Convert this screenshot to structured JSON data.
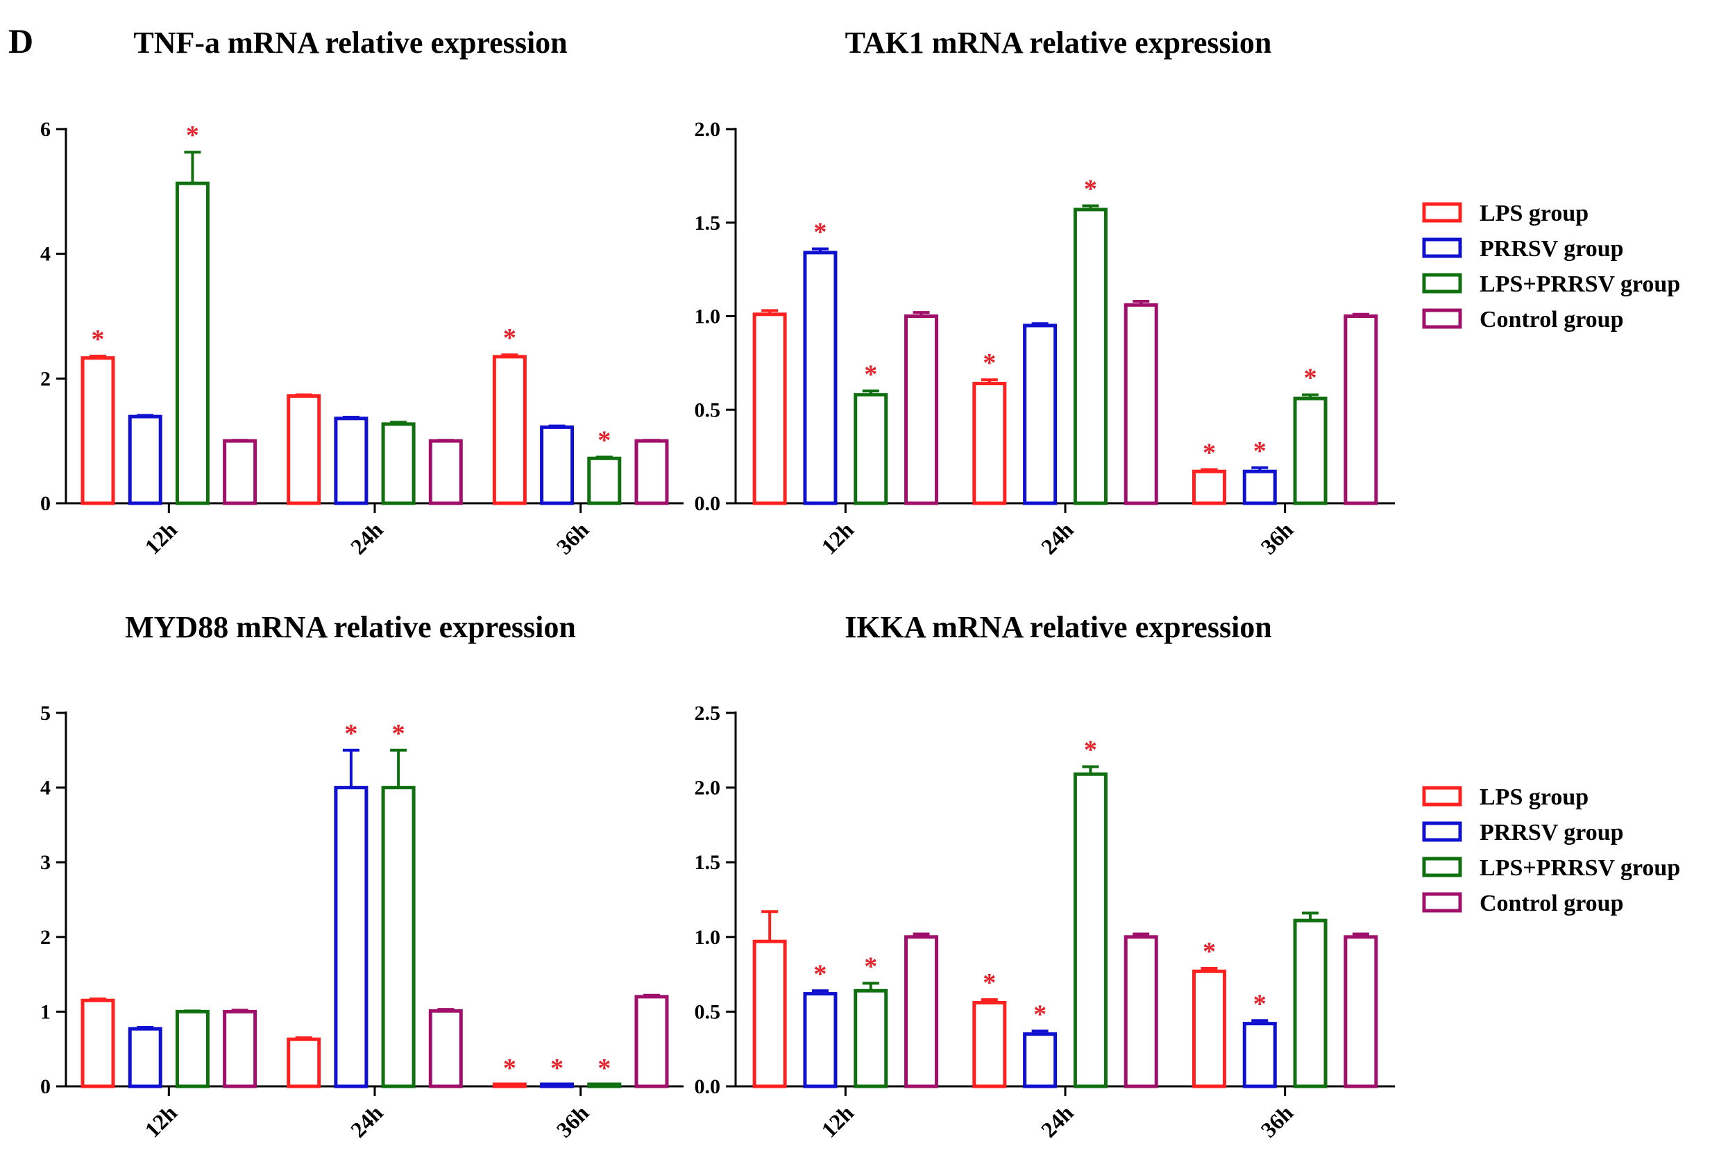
{
  "panel_letter": "D",
  "legend": [
    {
      "label": "LPS group",
      "color": "#ff2020"
    },
    {
      "label": "PRRSV group",
      "color": "#1010d0"
    },
    {
      "label": "LPS+PRRSV group",
      "color": "#107010"
    },
    {
      "label": "Control group",
      "color": "#a0106a"
    }
  ],
  "chart_data": [
    {
      "type": "bar",
      "title": "TNF-a mRNA relative expression",
      "categories": [
        "12h",
        "24h",
        "36h"
      ],
      "ylim": [
        0,
        6
      ],
      "yticks": [
        0,
        2,
        4,
        6
      ],
      "tick_decimals": 0,
      "series": [
        {
          "name": "LPS group",
          "values": [
            2.33,
            1.72,
            2.35
          ],
          "errors": [
            0.03,
            0.02,
            0.03
          ],
          "sig": [
            true,
            false,
            true
          ]
        },
        {
          "name": "PRRSV group",
          "values": [
            1.39,
            1.36,
            1.22
          ],
          "errors": [
            0.02,
            0.02,
            0.02
          ],
          "sig": [
            false,
            false,
            false
          ]
        },
        {
          "name": "LPS+PRRSV group",
          "values": [
            5.13,
            1.27,
            0.72
          ],
          "errors": [
            0.5,
            0.03,
            0.02
          ],
          "sig": [
            true,
            false,
            true
          ]
        },
        {
          "name": "Control group",
          "values": [
            1.0,
            1.0,
            1.0
          ],
          "errors": [
            0.01,
            0.01,
            0.01
          ],
          "sig": [
            false,
            false,
            false
          ]
        }
      ]
    },
    {
      "type": "bar",
      "title": "TAK1 mRNA relative expression",
      "categories": [
        "12h",
        "24h",
        "36h"
      ],
      "ylim": [
        0,
        2.0
      ],
      "yticks": [
        0,
        0.5,
        1.0,
        1.5,
        2.0
      ],
      "tick_decimals": 1,
      "series": [
        {
          "name": "LPS group",
          "values": [
            1.01,
            0.64,
            0.17
          ],
          "errors": [
            0.02,
            0.02,
            0.01
          ],
          "sig": [
            false,
            true,
            true
          ]
        },
        {
          "name": "PRRSV group",
          "values": [
            1.34,
            0.95,
            0.17
          ],
          "errors": [
            0.02,
            0.01,
            0.02
          ],
          "sig": [
            true,
            false,
            true
          ]
        },
        {
          "name": "LPS+PRRSV group",
          "values": [
            0.58,
            1.57,
            0.56
          ],
          "errors": [
            0.02,
            0.02,
            0.02
          ],
          "sig": [
            true,
            true,
            true
          ]
        },
        {
          "name": "Control group",
          "values": [
            1.0,
            1.06,
            1.0
          ],
          "errors": [
            0.02,
            0.02,
            0.01
          ],
          "sig": [
            false,
            false,
            false
          ]
        }
      ]
    },
    {
      "type": "bar",
      "title": "MYD88 mRNA relative expression",
      "categories": [
        "12h",
        "24h",
        "36h"
      ],
      "ylim": [
        0,
        5
      ],
      "yticks": [
        0,
        1,
        2,
        3,
        4,
        5
      ],
      "tick_decimals": 0,
      "series": [
        {
          "name": "LPS group",
          "values": [
            1.15,
            0.63,
            0.02
          ],
          "errors": [
            0.02,
            0.02,
            0.0
          ],
          "sig": [
            false,
            false,
            true
          ]
        },
        {
          "name": "PRRSV group",
          "values": [
            0.77,
            4.0,
            0.02
          ],
          "errors": [
            0.02,
            0.5,
            0.0
          ],
          "sig": [
            false,
            true,
            true
          ]
        },
        {
          "name": "LPS+PRRSV group",
          "values": [
            1.0,
            4.0,
            0.02
          ],
          "errors": [
            0.01,
            0.5,
            0.0
          ],
          "sig": [
            false,
            true,
            true
          ]
        },
        {
          "name": "Control group",
          "values": [
            1.0,
            1.01,
            1.2
          ],
          "errors": [
            0.02,
            0.02,
            0.02
          ],
          "sig": [
            false,
            false,
            false
          ]
        }
      ]
    },
    {
      "type": "bar",
      "title": "IKKA mRNA relative expression",
      "categories": [
        "12h",
        "24h",
        "36h"
      ],
      "ylim": [
        0,
        2.5
      ],
      "yticks": [
        0,
        0.5,
        1.0,
        1.5,
        2.0,
        2.5
      ],
      "tick_decimals": 1,
      "series": [
        {
          "name": "LPS group",
          "values": [
            0.97,
            0.56,
            0.77
          ],
          "errors": [
            0.2,
            0.02,
            0.02
          ],
          "sig": [
            false,
            true,
            true
          ]
        },
        {
          "name": "PRRSV group",
          "values": [
            0.62,
            0.35,
            0.42
          ],
          "errors": [
            0.02,
            0.02,
            0.02
          ],
          "sig": [
            true,
            true,
            true
          ]
        },
        {
          "name": "LPS+PRRSV group",
          "values": [
            0.64,
            2.09,
            1.11
          ],
          "errors": [
            0.05,
            0.05,
            0.05
          ],
          "sig": [
            true,
            true,
            false
          ]
        },
        {
          "name": "Control group",
          "values": [
            1.0,
            1.0,
            1.0
          ],
          "errors": [
            0.02,
            0.02,
            0.02
          ],
          "sig": [
            false,
            false,
            false
          ]
        }
      ]
    }
  ]
}
